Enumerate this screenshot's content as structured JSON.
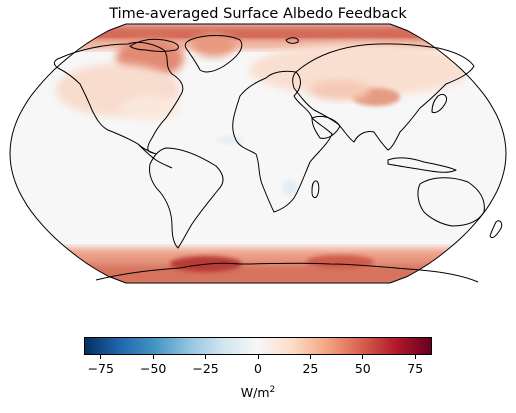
{
  "title": "Time-averaged Surface Albedo Feedback",
  "colorbar": {
    "colormap": "RdBu_r",
    "min": -83,
    "max": 83,
    "ticks": [
      -75,
      -50,
      -25,
      0,
      25,
      50,
      75
    ],
    "tick_labels": [
      "−75",
      "−50",
      "−25",
      "0",
      "25",
      "50",
      "75"
    ],
    "unit_base": "W/m",
    "unit_exponent": "2"
  },
  "map": {
    "projection": "Robinson",
    "variable": "surface albedo feedback",
    "background": "#f7f7f7",
    "coastline_color": "#000000",
    "hotspots": [
      {
        "region": "Arctic Ocean / Greenland",
        "value": 65
      },
      {
        "region": "Canadian Archipelago",
        "value": 55
      },
      {
        "region": "Southern Ocean sea-ice ring",
        "value": 60
      },
      {
        "region": "Antarctic coast (Weddell)",
        "value": 75
      },
      {
        "region": "Tibetan Plateau",
        "value": 45
      },
      {
        "region": "Northern Eurasia",
        "value": 20
      },
      {
        "region": "Northern North America",
        "value": 20
      }
    ]
  }
}
